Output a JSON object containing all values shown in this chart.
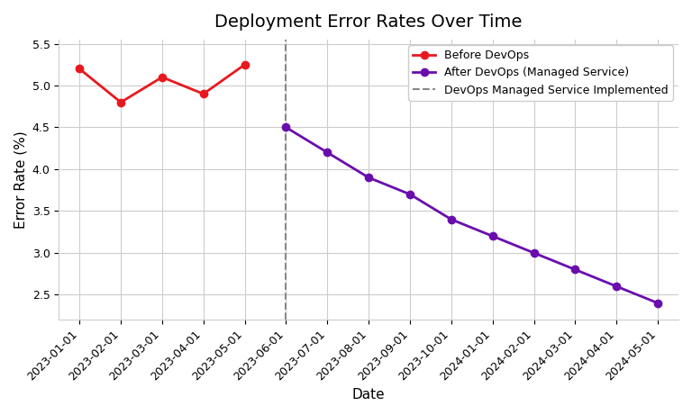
{
  "title": "Deployment Error Rates Over Time",
  "xlabel": "Date",
  "ylabel": "Error Rate (%)",
  "before_dates": [
    "2023-01-01",
    "2023-02-01",
    "2023-03-01",
    "2023-04-01",
    "2023-05-01"
  ],
  "before_values": [
    5.2,
    4.8,
    5.1,
    4.9,
    5.25
  ],
  "after_dates": [
    "2023-06-01",
    "2023-07-01",
    "2023-08-01",
    "2023-09-01",
    "2023-10-01",
    "2024-01-01",
    "2024-02-01",
    "2024-03-01",
    "2024-04-01",
    "2024-05-01"
  ],
  "after_values": [
    4.5,
    4.2,
    3.9,
    3.7,
    3.4,
    3.2,
    3.0,
    2.8,
    2.6,
    2.4
  ],
  "vline_after_index": 0,
  "before_color": "#e8191e",
  "after_color": "#6a0dad",
  "vline_color": "#888888",
  "legend_before": "Before DevOps",
  "legend_after": "After DevOps (Managed Service)",
  "legend_vline": "DevOps Managed Service Implemented",
  "ylim_min": 2.2,
  "ylim_max": 5.55,
  "bg_color": "#ffffff",
  "grid_color": "#cccccc",
  "marker_size": 6,
  "linewidth": 2,
  "title_fontsize": 14,
  "label_fontsize": 11,
  "tick_fontsize": 9
}
